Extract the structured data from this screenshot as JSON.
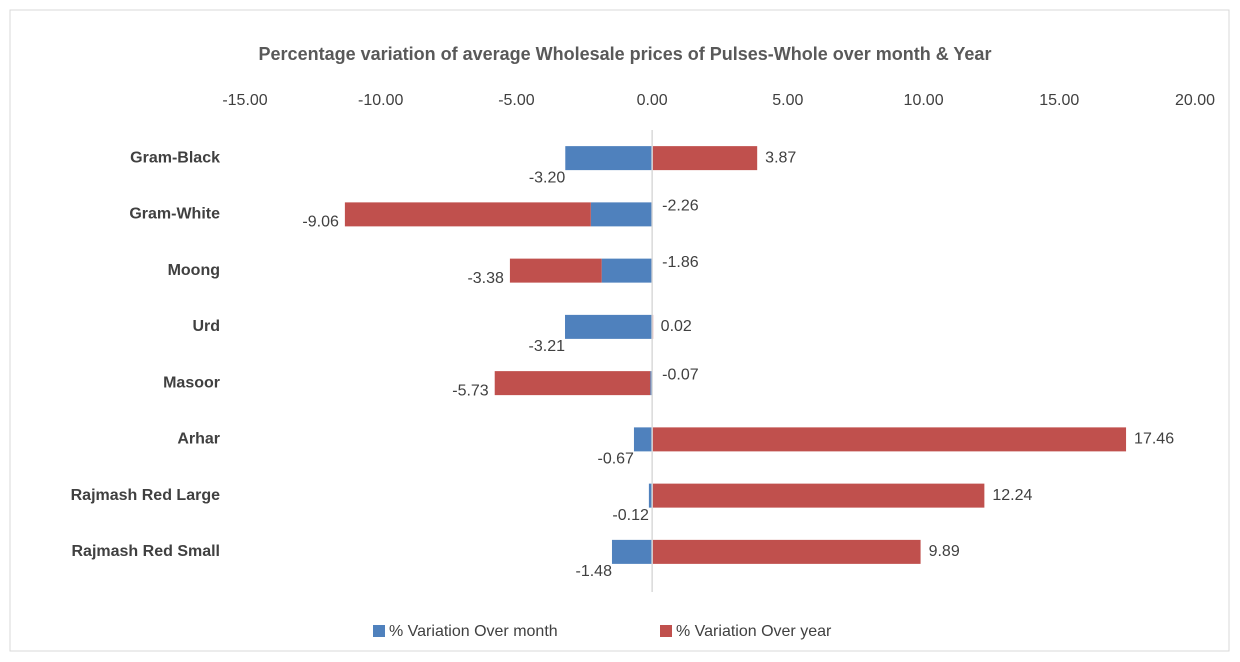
{
  "chart_data": {
    "type": "bar",
    "orientation": "horizontal",
    "stacked": true,
    "title": "Percentage variation of  average  Wholesale prices of Pulses-Whole over month & Year",
    "categories": [
      "Gram-Black",
      "Gram-White",
      "Moong",
      "Urd",
      "Masoor",
      "Arhar",
      "Rajmash Red Large",
      "Rajmash Red  Small"
    ],
    "series": [
      {
        "name": "% Variation Over month",
        "color": "#4f81bd",
        "values": [
          -3.2,
          -2.26,
          -1.86,
          -3.21,
          -0.07,
          -0.67,
          -0.12,
          -1.48
        ],
        "value_labels": [
          "-3.20",
          "-2.26",
          "-1.86",
          "-3.21",
          "-0.07",
          "-0.67",
          "-0.12",
          "-1.48"
        ]
      },
      {
        "name": "% Variation Over year",
        "color": "#c0504d",
        "values": [
          3.87,
          -9.06,
          -3.38,
          0.02,
          -5.73,
          17.46,
          12.24,
          9.89
        ],
        "value_labels": [
          "3.87",
          "-9.06",
          "-3.38",
          "0.02",
          "-5.73",
          "17.46",
          "12.24",
          "9.89"
        ]
      }
    ],
    "xlim": [
      -15,
      20
    ],
    "xticks": [
      {
        "value": -15,
        "label": "-15.00"
      },
      {
        "value": -10,
        "label": "-10.00"
      },
      {
        "value": -5,
        "label": "-5.00"
      },
      {
        "value": 0,
        "label": "0.00"
      },
      {
        "value": 5,
        "label": "5.00"
      },
      {
        "value": 10,
        "label": "10.00"
      },
      {
        "value": 15,
        "label": "15.00"
      },
      {
        "value": 20,
        "label": "20.00"
      }
    ],
    "grid": false,
    "legend": "bottom"
  }
}
